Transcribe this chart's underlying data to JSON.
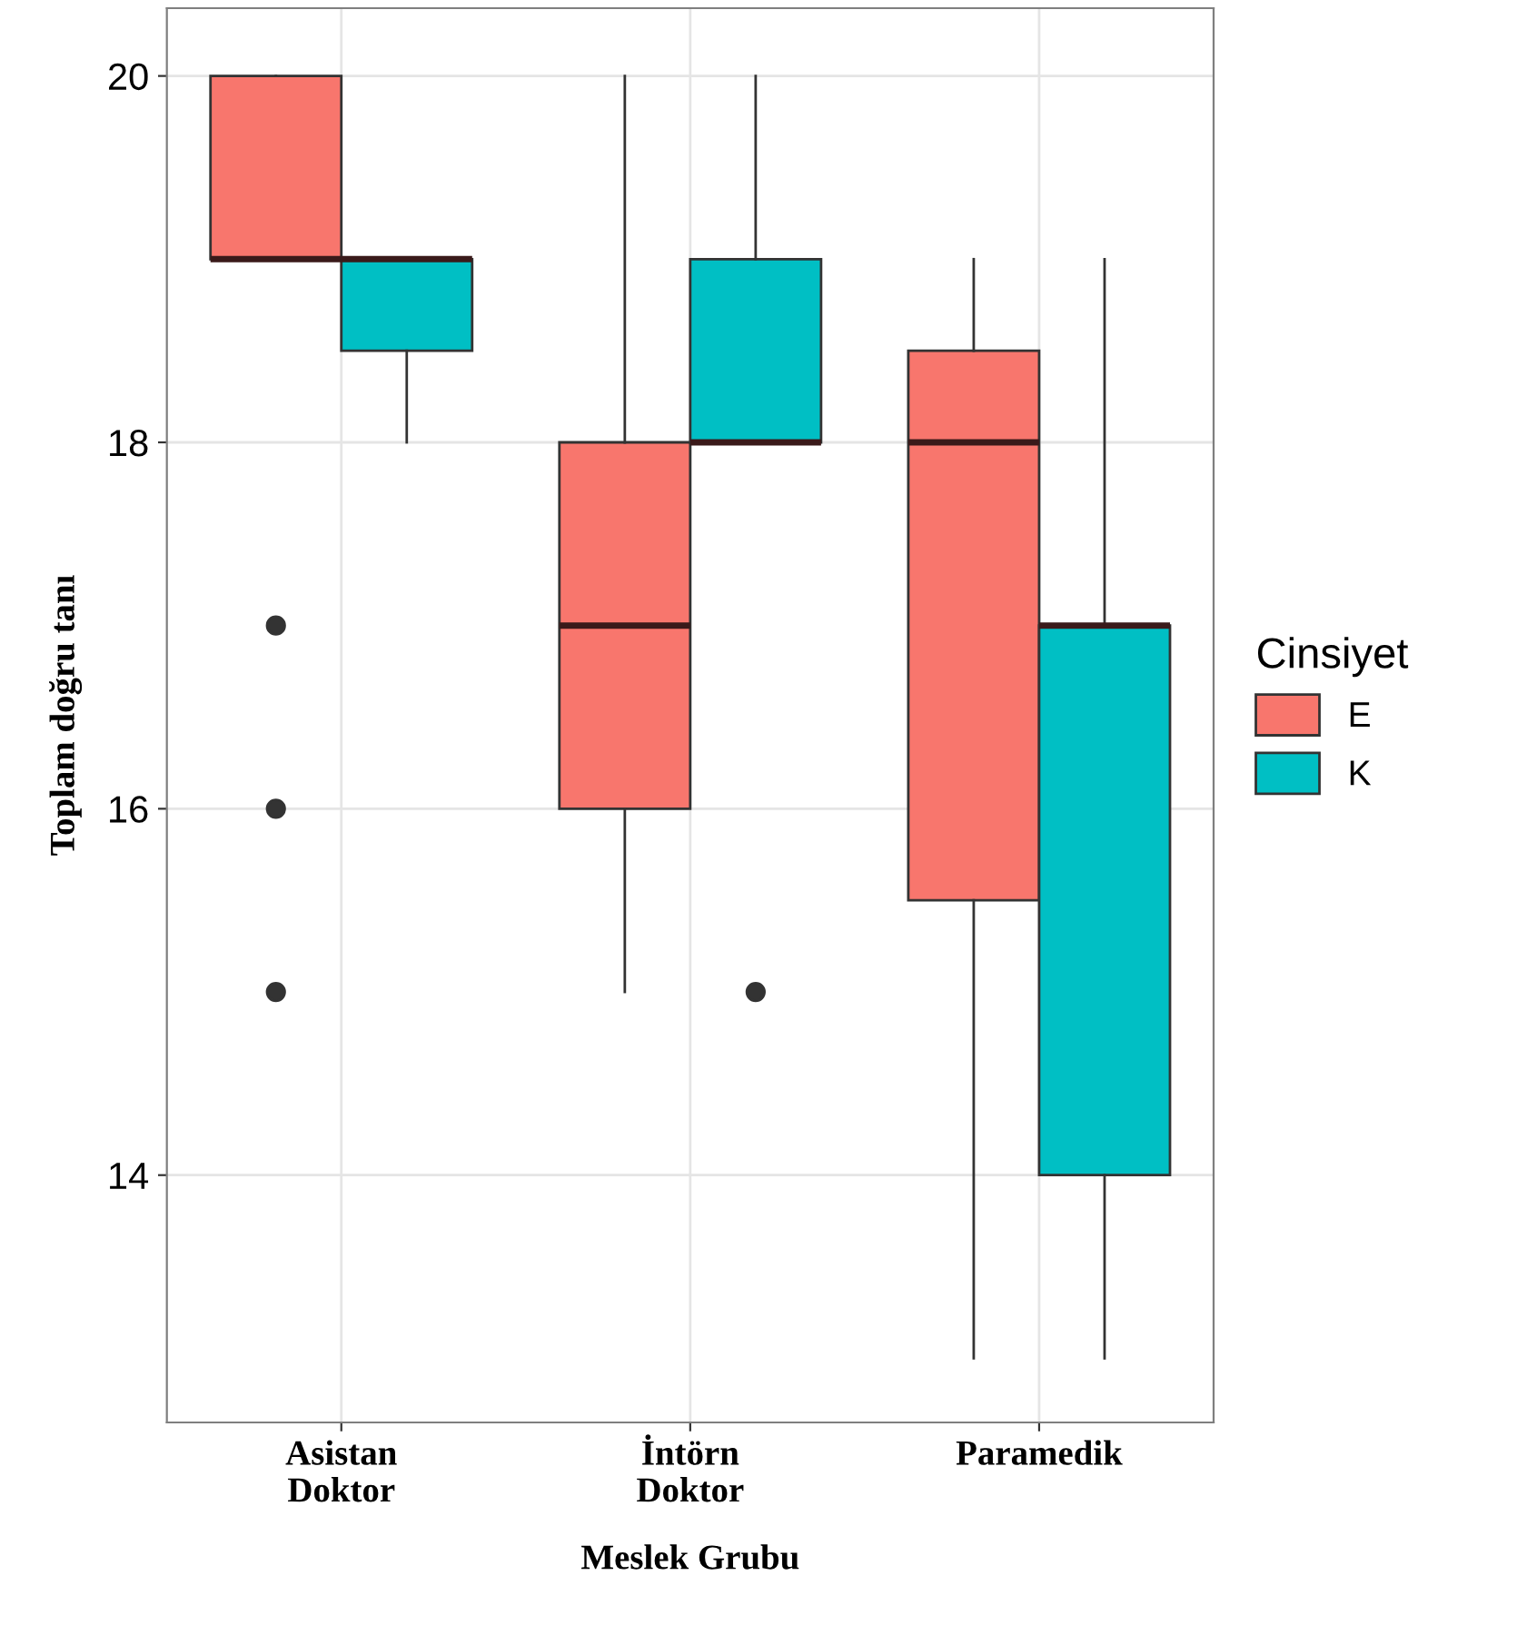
{
  "chart_data": {
    "type": "box",
    "xlabel": "Meslek Grubu",
    "ylabel": "Toplam doğru tanı",
    "legend_title": "Cinsiyet",
    "legend": "right",
    "categories": [
      "Asistan\nDoktor",
      "İntörn\nDoktor",
      "Paramedik"
    ],
    "ylim": [
      12.65,
      20.37
    ],
    "yticks": [
      14,
      16,
      18,
      20
    ],
    "grid": true,
    "series": [
      {
        "name": "E",
        "color": "#f8766d",
        "boxes": [
          {
            "low": 19,
            "q1": 19,
            "median": 19,
            "q3": 20,
            "high": 20,
            "outliers": [
              17,
              16,
              15
            ]
          },
          {
            "low": 15,
            "q1": 16,
            "median": 17,
            "q3": 18,
            "high": 20
          },
          {
            "low": 13,
            "q1": 15.5,
            "median": 18,
            "q3": 18.5,
            "high": 19
          }
        ]
      },
      {
        "name": "K",
        "color": "#00bfc4",
        "boxes": [
          {
            "low": 18,
            "q1": 18.5,
            "median": 19,
            "q3": 19,
            "high": 19
          },
          {
            "low": 18,
            "q1": 18,
            "median": 18,
            "q3": 19,
            "high": 20,
            "outliers": [
              15
            ]
          },
          {
            "low": 13,
            "q1": 14,
            "median": 17,
            "q3": 17,
            "high": 19
          }
        ]
      }
    ]
  }
}
